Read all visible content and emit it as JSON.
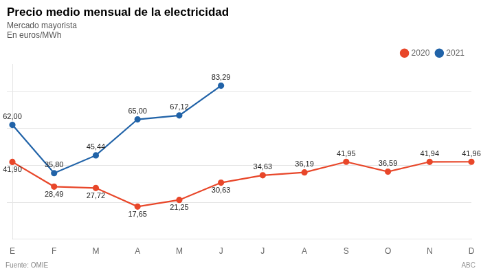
{
  "chart_data": {
    "type": "line",
    "title": "Precio medio mensual de la electricidad",
    "subtitle": [
      "Mercado mayorista",
      "En euros/MWh"
    ],
    "annotations": [
      "Fuente: OMIE",
      "ABC"
    ],
    "categories": [
      "E",
      "F",
      "M",
      "A",
      "M",
      "J",
      "J",
      "A",
      "S",
      "O",
      "N",
      "D"
    ],
    "series": [
      {
        "name": "2020",
        "color": "#e8472a",
        "marker": "circle",
        "line_style": "solid",
        "values": [
          41.9,
          28.49,
          27.72,
          17.65,
          21.25,
          30.63,
          34.63,
          36.19,
          41.95,
          36.59,
          41.94,
          41.96
        ],
        "value_labels": [
          "41,90",
          "28,49",
          "27,72",
          "17,65",
          "21,25",
          "30,63",
          "34,63",
          "36,19",
          "41,95",
          "36,59",
          "41,94",
          "41,96"
        ]
      },
      {
        "name": "2021",
        "color": "#2163a8",
        "marker": "circle",
        "line_style": "solid",
        "values": [
          62.0,
          35.8,
          45.44,
          65.0,
          67.12,
          83.29,
          null,
          null,
          null,
          null,
          null,
          null
        ],
        "value_labels": [
          "62,00",
          "35,80",
          "45,44",
          "65,00",
          "67,12",
          "83,29",
          null,
          null,
          null,
          null,
          null,
          null
        ]
      }
    ],
    "ylim": [
      0,
      95
    ],
    "yticks": [
      20,
      40,
      60,
      80
    ],
    "grid": true,
    "legend": "upper right",
    "data_labels": true,
    "tick_labels": "x"
  }
}
